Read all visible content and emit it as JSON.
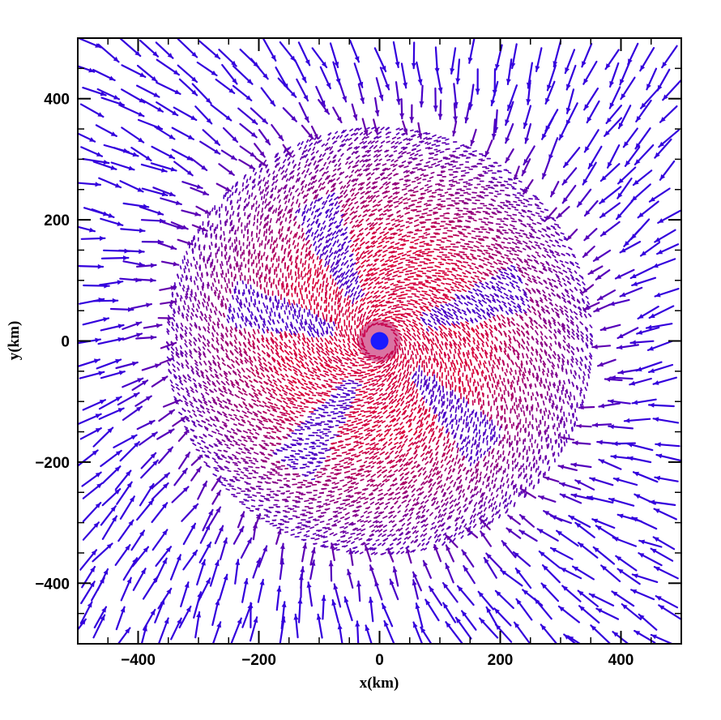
{
  "chart_data": {
    "type": "scatter",
    "subtype": "vector-field",
    "xlabel": "x(km)",
    "ylabel": "y(km)",
    "xlim": [
      -500,
      500
    ],
    "ylim": [
      -500,
      500
    ],
    "xticks": [
      -400,
      -200,
      0,
      200,
      400
    ],
    "yticks": [
      -400,
      -200,
      0,
      200,
      400
    ],
    "xtick_labels": [
      "−400",
      "−200",
      "0",
      "200",
      "400"
    ],
    "ytick_labels": [
      "−400",
      "−200",
      "0",
      "200",
      "400"
    ],
    "grid": false,
    "legend": "none",
    "center_marker": {
      "x": 0,
      "y": 0,
      "color": "#1a1aff"
    },
    "field": {
      "inner_color": "#dd0033",
      "outer_color": "#3300dd",
      "inner_radius_km": 350,
      "flow": "inward toward origin, counter-clockwise swirl in inner region",
      "spiral_arms_angles_deg": [
        115,
        165,
        20,
        235,
        315
      ]
    },
    "colors": {
      "inward_fast": "#3a14d8",
      "dense_core": "#d40a38",
      "center": "#1a1aff"
    }
  }
}
